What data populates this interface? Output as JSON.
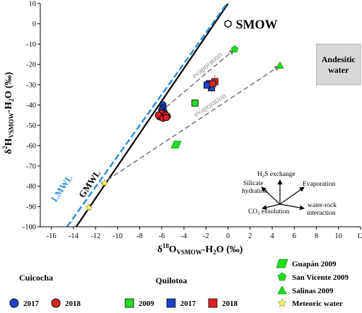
{
  "chart_data": {
    "type": "scatter",
    "xlabel": {
      "pre": "δ",
      "sup": "18",
      "main": "O",
      "sub": "VSMOW",
      "post": "-H",
      "sub2": "2",
      "post2": "O (‰)"
    },
    "ylabel": {
      "pre": "δ",
      "sup": "2",
      "main": "H",
      "sub": "VSMOW",
      "post": "-H",
      "sub2": "2",
      "post2": "O (‰)"
    },
    "xlim": [
      -17,
      12
    ],
    "ylim": [
      -100,
      10
    ],
    "x_ticks": [
      -16,
      -14,
      -12,
      -10,
      -8,
      -6,
      -4,
      -2,
      0,
      2,
      4,
      6,
      8,
      10,
      12
    ],
    "y_ticks": [
      10,
      0,
      -10,
      -20,
      -30,
      -40,
      -50,
      -60,
      -70,
      -80,
      -90,
      -100
    ],
    "lines": [
      {
        "label": "GMWL",
        "color": "#000000",
        "dashed": false,
        "slope": 8,
        "intercept": 10
      },
      {
        "label": "LMWL",
        "color": "#2f8fd8",
        "dashed": true,
        "slope": 7.6,
        "intercept": 10.8
      }
    ],
    "smow": {
      "label": "SMOW",
      "x": 0,
      "y": 0
    },
    "evaporation_arrows": [
      {
        "label": "evaporation",
        "from": [
          -5.6,
          -41
        ],
        "to": [
          0.5,
          -13
        ]
      },
      {
        "label": "evaporation",
        "from": [
          -11.5,
          -79
        ],
        "to": [
          4.6,
          -21
        ]
      }
    ],
    "andesitic_box": {
      "label": "Andesitic water",
      "x": [
        8,
        12
      ],
      "y": [
        -30,
        -10
      ]
    },
    "series": [
      {
        "name": "Guapán 2009",
        "marker": "parallelogram",
        "color": "#22dd22",
        "points": [
          [
            -4.7,
            -59.5
          ]
        ]
      },
      {
        "name": "San Vicente 2009",
        "marker": "pentagon",
        "color": "#22dd22",
        "points": [
          [
            0.6,
            -12.5
          ]
        ]
      },
      {
        "name": "Salinas 2009",
        "marker": "triangle",
        "color": "#22dd22",
        "points": [
          [
            4.7,
            -20.5
          ]
        ]
      },
      {
        "name": "Meteoric water",
        "marker": "star",
        "color": "#ffff66",
        "points": [
          [
            -11.2,
            -78.5
          ],
          [
            -12.6,
            -90.5
          ]
        ]
      },
      {
        "name": "Quilotoa 2009",
        "marker": "square",
        "color": "#22dd22",
        "points": [
          [
            -3,
            -39
          ]
        ]
      },
      {
        "name": "Quilotoa 2017",
        "marker": "square",
        "color": "#1e44cc",
        "points": [
          [
            -1.7,
            -29.5
          ],
          [
            -1.5,
            -31.5
          ],
          [
            -1.9,
            -30.2
          ]
        ]
      },
      {
        "name": "Quilotoa 2018",
        "marker": "square",
        "color": "#dd2222",
        "points": [
          [
            -1.2,
            -28.5
          ],
          [
            -1.4,
            -29.5
          ]
        ]
      },
      {
        "name": "Cuicocha 2017",
        "marker": "circle",
        "color": "#1e44cc",
        "points": [
          [
            -5.9,
            -40
          ],
          [
            -5.9,
            -41.5
          ],
          [
            -6.0,
            -42.5
          ],
          [
            -5.8,
            -43.5
          ],
          [
            -5.95,
            -44.5
          ]
        ]
      },
      {
        "name": "Cuicocha 2018",
        "marker": "circle",
        "color": "#dd2222",
        "points": [
          [
            -6.1,
            -44.5
          ],
          [
            -5.7,
            -44.5
          ],
          [
            -6.2,
            -45.8
          ],
          [
            -5.85,
            -46
          ],
          [
            -5.5,
            -45.5
          ],
          [
            -6.0,
            -44
          ],
          [
            -5.65,
            -45
          ],
          [
            -6.3,
            -45
          ],
          [
            -5.9,
            -46.5
          ],
          [
            -5.6,
            -46.2
          ]
        ]
      }
    ],
    "inset": {
      "labels": {
        "h2s": {
          "pre": "H",
          "sub": "2",
          "post": "S exchange"
        },
        "evap": "Evaporation",
        "silicate1": "Silicate",
        "silicate2": "hydration",
        "co2": {
          "pre": "CO",
          "sub": "2",
          "post": " exsolution"
        },
        "wr1": "water-rock",
        "wr2": "interaction"
      }
    },
    "legend_left": {
      "headers": {
        "cuicocha": "Cuicocha",
        "quilotoa": "Quilotoa"
      },
      "items": {
        "cui2017": "2017",
        "cui2018": "2018",
        "qui2009": "2009",
        "qui2017": "2017",
        "qui2018": "2018"
      }
    },
    "legend_right": {
      "guapan": "Guapán 2009",
      "sanvicente": "San Vicente 2009",
      "salinas": "Salinas 2009",
      "meteoric": "Meteoric water"
    }
  }
}
